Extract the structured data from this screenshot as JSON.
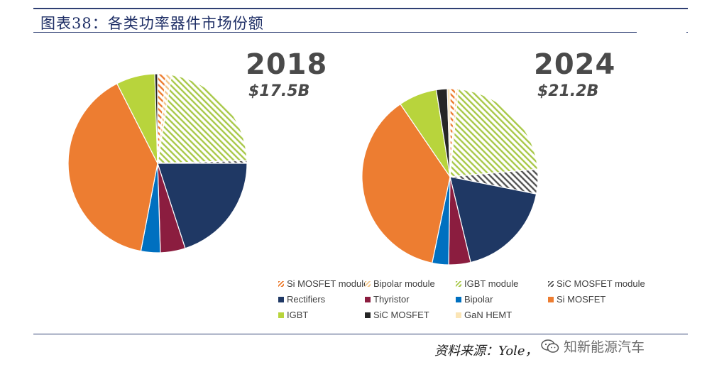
{
  "header": {
    "title": "图表38：各类功率器件市场份额"
  },
  "source": {
    "text": "资料来源：Yole，"
  },
  "watermark": {
    "text": "知新能源汽车"
  },
  "colors": {
    "Si MOSFET module": "#ed7d31",
    "Bipolar module": "#f2c68b",
    "IGBT module": "#a9c94a",
    "SiC MOSFET module": "#555555",
    "Rectifiers": "#1f3864",
    "Thyristor": "#8b1d3f",
    "Bipolar": "#0070c0",
    "Si MOSFET": "#ed7d31",
    "IGBT": "#b8d43c",
    "SiC MOSFET": "#262626",
    "GaN HEMT": "#fbe5b6"
  },
  "legend": [
    {
      "label": "Si MOSFET module",
      "pattern": "hatch",
      "color": "#ed7d31"
    },
    {
      "label": "Bipolar module",
      "pattern": "hatch",
      "color": "#f2c68b"
    },
    {
      "label": "IGBT module",
      "pattern": "hatch",
      "color": "#a9c94a"
    },
    {
      "label": "SiC MOSFET module",
      "pattern": "hatch",
      "color": "#555555"
    },
    {
      "label": "Rectifiers",
      "pattern": "solid",
      "color": "#1f3864"
    },
    {
      "label": "Thyristor",
      "pattern": "solid",
      "color": "#8b1d3f"
    },
    {
      "label": "Bipolar",
      "pattern": "solid",
      "color": "#0070c0"
    },
    {
      "label": "Si MOSFET",
      "pattern": "solid",
      "color": "#ed7d31"
    },
    {
      "label": "IGBT",
      "pattern": "solid",
      "color": "#b8d43c"
    },
    {
      "label": "SiC MOSFET",
      "pattern": "solid",
      "color": "#262626"
    },
    {
      "label": "GaN HEMT",
      "pattern": "solid",
      "color": "#fbe5b6"
    }
  ],
  "chart_data": [
    {
      "type": "pie",
      "title": "2018",
      "subtitle": "$17.5B",
      "start_angle_deg": 0,
      "direction": "clockwise",
      "slices": [
        {
          "label": "Si MOSFET module",
          "value": 1.5
        },
        {
          "label": "Bipolar module",
          "value": 1.0
        },
        {
          "label": "IGBT module",
          "value": 22.0
        },
        {
          "label": "SiC MOSFET module",
          "value": 0.5
        },
        {
          "label": "Rectifiers",
          "value": 20.0
        },
        {
          "label": "Thyristor",
          "value": 4.5
        },
        {
          "label": "Bipolar",
          "value": 3.5
        },
        {
          "label": "Si MOSFET",
          "value": 39.5
        },
        {
          "label": "IGBT",
          "value": 7.0
        },
        {
          "label": "SiC MOSFET",
          "value": 0.5
        },
        {
          "label": "GaN HEMT",
          "value": 0.0
        }
      ]
    },
    {
      "type": "pie",
      "title": "2024",
      "subtitle": "$21.2B",
      "start_angle_deg": 0,
      "direction": "clockwise",
      "slices": [
        {
          "label": "Si MOSFET module",
          "value": 1.0
        },
        {
          "label": "Bipolar module",
          "value": 0.5
        },
        {
          "label": "IGBT module",
          "value": 22.0
        },
        {
          "label": "SiC MOSFET module",
          "value": 4.5
        },
        {
          "label": "Rectifiers",
          "value": 18.0
        },
        {
          "label": "Thyristor",
          "value": 4.0
        },
        {
          "label": "Bipolar",
          "value": 3.0
        },
        {
          "label": "Si MOSFET",
          "value": 37.0
        },
        {
          "label": "IGBT",
          "value": 7.0
        },
        {
          "label": "SiC MOSFET",
          "value": 2.0
        },
        {
          "label": "GaN HEMT",
          "value": 0.5
        }
      ]
    }
  ]
}
